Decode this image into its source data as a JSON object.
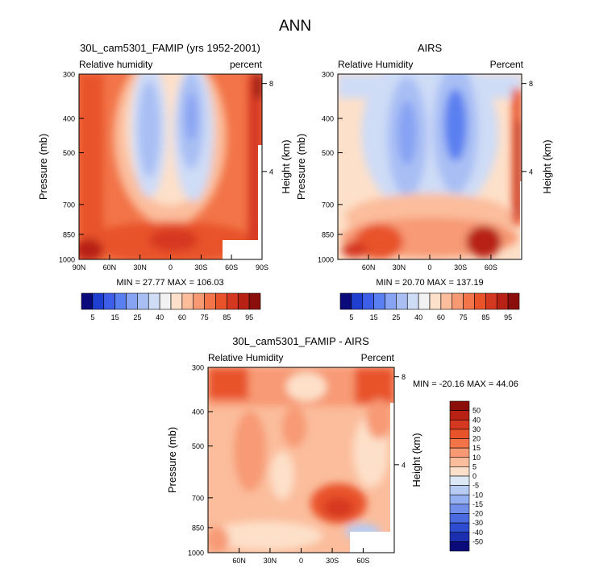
{
  "figure_title": "ANN",
  "chart_data": [
    {
      "type": "heatmap",
      "title": "30L_cam5301_FAMIP (yrs 1952-2001)",
      "left_label": "Relative humidity",
      "right_label": "percent",
      "xlabel": "",
      "ylabel": "Pressure (mb)",
      "ylabel_right": "Height (km)",
      "x_ticks": [
        "90N",
        "60N",
        "30N",
        "0",
        "30S",
        "60S",
        "90S"
      ],
      "y_ticks": [
        "300",
        "400",
        "500",
        "700",
        "850",
        "1000"
      ],
      "y_right_ticks": [
        "8",
        "4"
      ],
      "stats": "MIN =  27.77   MAX = 106.03",
      "colorbar_labels": [
        "5",
        "15",
        "25",
        "40",
        "60",
        "75",
        "85",
        "95"
      ]
    },
    {
      "type": "heatmap",
      "title": "AIRS",
      "left_label": "Relative Humidity",
      "right_label": "Percent",
      "xlabel": "",
      "ylabel": "Pressure (mb)",
      "ylabel_right": "Height (km)",
      "x_ticks": [
        "60N",
        "30N",
        "0",
        "30S",
        "60S"
      ],
      "y_ticks": [
        "300",
        "400",
        "500",
        "700",
        "850",
        "1000"
      ],
      "y_right_ticks": [
        "8",
        "4"
      ],
      "stats": "MIN =  20.70   MAX = 137.19",
      "colorbar_labels": [
        "5",
        "15",
        "25",
        "40",
        "60",
        "75",
        "85",
        "95"
      ]
    },
    {
      "type": "heatmap",
      "title": "30L_cam5301_FAMIP - AIRS",
      "left_label": "Relative Humidity",
      "right_label": "Percent",
      "xlabel": "",
      "ylabel": "Pressure (mb)",
      "ylabel_right": "Height (km)",
      "x_ticks": [
        "60N",
        "30N",
        "0",
        "30S",
        "60S"
      ],
      "y_ticks": [
        "300",
        "400",
        "500",
        "700",
        "850",
        "1000"
      ],
      "y_right_ticks": [
        "8",
        "4"
      ],
      "stats": "MIN = -20.16   MAX =  44.06",
      "colorbar_labels": [
        "50",
        "40",
        "30",
        "20",
        "15",
        "10",
        "5",
        "0",
        "-5",
        "-10",
        "-15",
        "-20",
        "-30",
        "-40",
        "-50"
      ]
    }
  ],
  "colors": {
    "abs_scale": [
      "#0a0a7a",
      "#1f3fd0",
      "#3c5ee8",
      "#5a7ff0",
      "#87a3f3",
      "#a9bff4",
      "#cfdcf6",
      "#f2f2f2",
      "#fde0c9",
      "#fbbd9c",
      "#f79a74",
      "#f27448",
      "#e8532a",
      "#d53820",
      "#b82214",
      "#8b0e0a"
    ],
    "diff_scale": [
      "#8b0e0a",
      "#b82214",
      "#d53820",
      "#e8532a",
      "#f27448",
      "#f79a74",
      "#fbbd9c",
      "#fde0c9",
      "#dde8f7",
      "#b8cbf3",
      "#95b0f0",
      "#7290ea",
      "#4a6be0",
      "#2e4cd0",
      "#1b2fb0",
      "#0a0a7a"
    ],
    "missing": "#ffffff"
  }
}
